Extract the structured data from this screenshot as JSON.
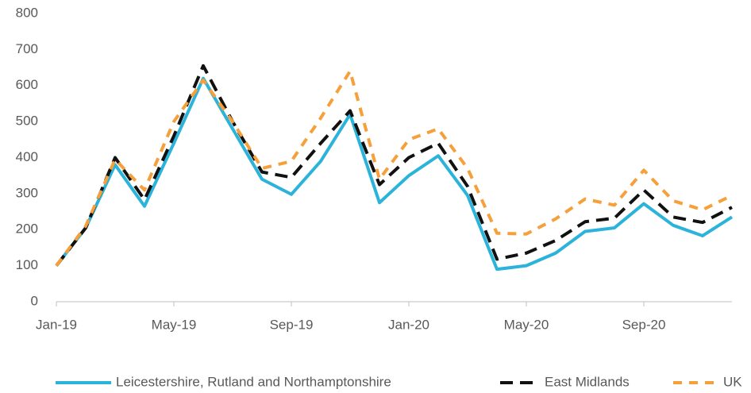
{
  "chart_data": {
    "type": "line",
    "categories": [
      "Jan-19",
      null,
      null,
      null,
      "May-19",
      null,
      null,
      null,
      "Sep-19",
      null,
      null,
      null,
      "Jan-20",
      null,
      null,
      null,
      "May-20",
      null,
      null,
      null,
      "Sep-20",
      null,
      null,
      null
    ],
    "series": [
      {
        "name": "Leicestershire, Rutland and Northamptonshire",
        "color": "#2bb3d9",
        "dash": "solid",
        "values": [
          100,
          205,
          380,
          265,
          440,
          620,
          480,
          340,
          298,
          390,
          520,
          275,
          350,
          405,
          295,
          90,
          100,
          135,
          195,
          205,
          272,
          212,
          183,
          235
        ]
      },
      {
        "name": "East Midlands",
        "color": "#111111",
        "dash": "long-dash",
        "values": [
          100,
          205,
          400,
          283,
          460,
          655,
          500,
          360,
          345,
          440,
          530,
          325,
          400,
          440,
          320,
          118,
          135,
          170,
          222,
          232,
          310,
          235,
          220,
          262
        ]
      },
      {
        "name": "UK",
        "color": "#f5a03a",
        "dash": "dash",
        "values": [
          100,
          210,
          395,
          310,
          500,
          615,
          500,
          370,
          390,
          510,
          640,
          340,
          450,
          480,
          370,
          190,
          188,
          230,
          285,
          268,
          365,
          280,
          255,
          295
        ]
      }
    ],
    "ylim": [
      0,
      800
    ],
    "yticks": [
      0,
      100,
      200,
      300,
      400,
      500,
      600,
      700,
      800
    ],
    "grid": false,
    "legend": "bottom"
  }
}
